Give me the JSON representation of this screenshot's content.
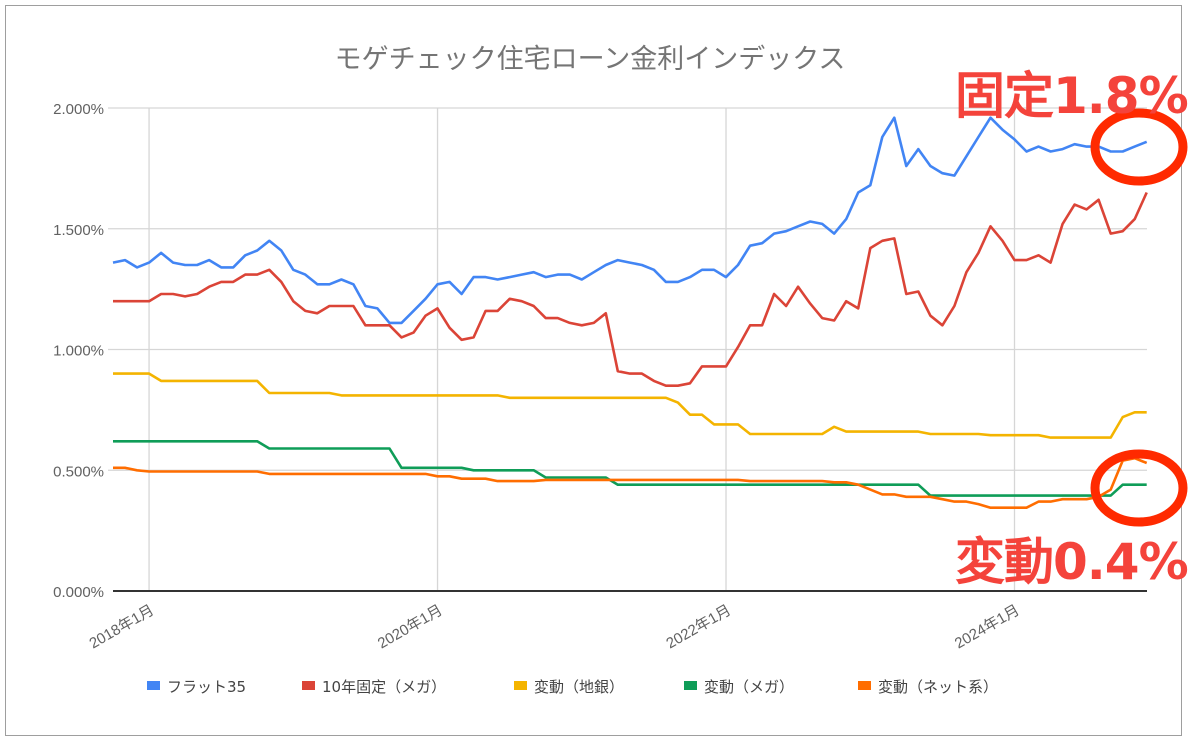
{
  "chart_data": {
    "type": "line",
    "title": "モゲチェック住宅ローン金利インデックス",
    "xlabel": "",
    "ylabel": "",
    "x_start": "2017-10",
    "frequency": "monthly",
    "x_ticks": [
      {
        "label": "2018年1月",
        "index": 3
      },
      {
        "label": "2020年1月",
        "index": 27
      },
      {
        "label": "2022年1月",
        "index": 51
      },
      {
        "label": "2024年1月",
        "index": 75
      }
    ],
    "ylim": [
      0,
      2
    ],
    "y_ticks": [
      "0.000%",
      "0.500%",
      "1.000%",
      "1.500%",
      "2.000%"
    ],
    "y_tick_values": [
      0,
      0.5,
      1.0,
      1.5,
      2.0
    ],
    "grid": true,
    "legend_position": "bottom",
    "series": [
      {
        "name": "フラット35",
        "color": "#4285f4",
        "values": [
          1.36,
          1.37,
          1.34,
          1.36,
          1.4,
          1.36,
          1.35,
          1.35,
          1.37,
          1.34,
          1.34,
          1.39,
          1.41,
          1.45,
          1.41,
          1.33,
          1.31,
          1.27,
          1.27,
          1.29,
          1.27,
          1.18,
          1.17,
          1.11,
          1.11,
          1.16,
          1.21,
          1.27,
          1.28,
          1.23,
          1.3,
          1.3,
          1.29,
          1.3,
          1.31,
          1.32,
          1.3,
          1.31,
          1.31,
          1.29,
          1.32,
          1.35,
          1.37,
          1.36,
          1.35,
          1.33,
          1.28,
          1.28,
          1.3,
          1.33,
          1.33,
          1.3,
          1.35,
          1.43,
          1.44,
          1.48,
          1.49,
          1.51,
          1.53,
          1.52,
          1.48,
          1.54,
          1.65,
          1.68,
          1.88,
          1.96,
          1.76,
          1.83,
          1.76,
          1.73,
          1.72,
          1.8,
          1.88,
          1.96,
          1.91,
          1.87,
          1.82,
          1.84,
          1.82,
          1.83,
          1.85,
          1.84,
          1.84,
          1.82,
          1.82,
          1.84,
          1.86
        ]
      },
      {
        "name": "10年固定（メガ）",
        "color": "#db4437",
        "values": [
          1.2,
          1.2,
          1.2,
          1.2,
          1.23,
          1.23,
          1.22,
          1.23,
          1.26,
          1.28,
          1.28,
          1.31,
          1.31,
          1.33,
          1.28,
          1.2,
          1.16,
          1.15,
          1.18,
          1.18,
          1.18,
          1.1,
          1.1,
          1.1,
          1.05,
          1.07,
          1.14,
          1.17,
          1.09,
          1.04,
          1.05,
          1.16,
          1.16,
          1.21,
          1.2,
          1.18,
          1.13,
          1.13,
          1.11,
          1.1,
          1.11,
          1.15,
          0.91,
          0.9,
          0.9,
          0.87,
          0.85,
          0.85,
          0.86,
          0.93,
          0.93,
          0.93,
          1.01,
          1.1,
          1.1,
          1.23,
          1.18,
          1.26,
          1.19,
          1.13,
          1.12,
          1.2,
          1.17,
          1.42,
          1.45,
          1.46,
          1.23,
          1.24,
          1.14,
          1.1,
          1.18,
          1.32,
          1.4,
          1.51,
          1.45,
          1.37,
          1.37,
          1.39,
          1.36,
          1.52,
          1.6,
          1.58,
          1.62,
          1.48,
          1.49,
          1.54,
          1.65
        ]
      },
      {
        "name": "変動（地銀）",
        "color": "#f4b400",
        "values": [
          0.9,
          0.9,
          0.9,
          0.9,
          0.87,
          0.87,
          0.87,
          0.87,
          0.87,
          0.87,
          0.87,
          0.87,
          0.87,
          0.82,
          0.82,
          0.82,
          0.82,
          0.82,
          0.82,
          0.81,
          0.81,
          0.81,
          0.81,
          0.81,
          0.81,
          0.81,
          0.81,
          0.81,
          0.81,
          0.81,
          0.81,
          0.81,
          0.81,
          0.8,
          0.8,
          0.8,
          0.8,
          0.8,
          0.8,
          0.8,
          0.8,
          0.8,
          0.8,
          0.8,
          0.8,
          0.8,
          0.8,
          0.78,
          0.73,
          0.73,
          0.69,
          0.69,
          0.69,
          0.65,
          0.65,
          0.65,
          0.65,
          0.65,
          0.65,
          0.65,
          0.68,
          0.66,
          0.66,
          0.66,
          0.66,
          0.66,
          0.66,
          0.66,
          0.65,
          0.65,
          0.65,
          0.65,
          0.65,
          0.645,
          0.645,
          0.645,
          0.645,
          0.645,
          0.635,
          0.635,
          0.635,
          0.635,
          0.635,
          0.635,
          0.72,
          0.74,
          0.74
        ]
      },
      {
        "name": "変動（メガ）",
        "color": "#0f9d58",
        "values": [
          0.62,
          0.62,
          0.62,
          0.62,
          0.62,
          0.62,
          0.62,
          0.62,
          0.62,
          0.62,
          0.62,
          0.62,
          0.62,
          0.59,
          0.59,
          0.59,
          0.59,
          0.59,
          0.59,
          0.59,
          0.59,
          0.59,
          0.59,
          0.59,
          0.51,
          0.51,
          0.51,
          0.51,
          0.51,
          0.51,
          0.5,
          0.5,
          0.5,
          0.5,
          0.5,
          0.5,
          0.47,
          0.47,
          0.47,
          0.47,
          0.47,
          0.47,
          0.44,
          0.44,
          0.44,
          0.44,
          0.44,
          0.44,
          0.44,
          0.44,
          0.44,
          0.44,
          0.44,
          0.44,
          0.44,
          0.44,
          0.44,
          0.44,
          0.44,
          0.44,
          0.44,
          0.44,
          0.44,
          0.44,
          0.44,
          0.44,
          0.44,
          0.44,
          0.395,
          0.395,
          0.395,
          0.395,
          0.395,
          0.395,
          0.395,
          0.395,
          0.395,
          0.395,
          0.395,
          0.395,
          0.395,
          0.395,
          0.395,
          0.395,
          0.44,
          0.44,
          0.44
        ]
      },
      {
        "name": "変動（ネット系）",
        "color": "#ff6d00",
        "values": [
          0.51,
          0.51,
          0.5,
          0.495,
          0.495,
          0.495,
          0.495,
          0.495,
          0.495,
          0.495,
          0.495,
          0.495,
          0.495,
          0.485,
          0.485,
          0.485,
          0.485,
          0.485,
          0.485,
          0.485,
          0.485,
          0.485,
          0.485,
          0.485,
          0.485,
          0.485,
          0.485,
          0.475,
          0.475,
          0.465,
          0.465,
          0.465,
          0.455,
          0.455,
          0.455,
          0.455,
          0.46,
          0.46,
          0.46,
          0.46,
          0.46,
          0.46,
          0.46,
          0.46,
          0.46,
          0.46,
          0.46,
          0.46,
          0.46,
          0.46,
          0.46,
          0.46,
          0.46,
          0.455,
          0.455,
          0.455,
          0.455,
          0.455,
          0.455,
          0.455,
          0.45,
          0.45,
          0.44,
          0.42,
          0.4,
          0.4,
          0.39,
          0.39,
          0.39,
          0.38,
          0.37,
          0.37,
          0.36,
          0.345,
          0.345,
          0.345,
          0.345,
          0.37,
          0.37,
          0.38,
          0.38,
          0.38,
          0.39,
          0.42,
          0.54,
          0.55,
          0.53
        ]
      }
    ]
  },
  "annotations": {
    "fixed": "固定1.8%",
    "variable": "変動0.4%",
    "color": "#f4433b",
    "circle_color": "#ff2a00"
  }
}
